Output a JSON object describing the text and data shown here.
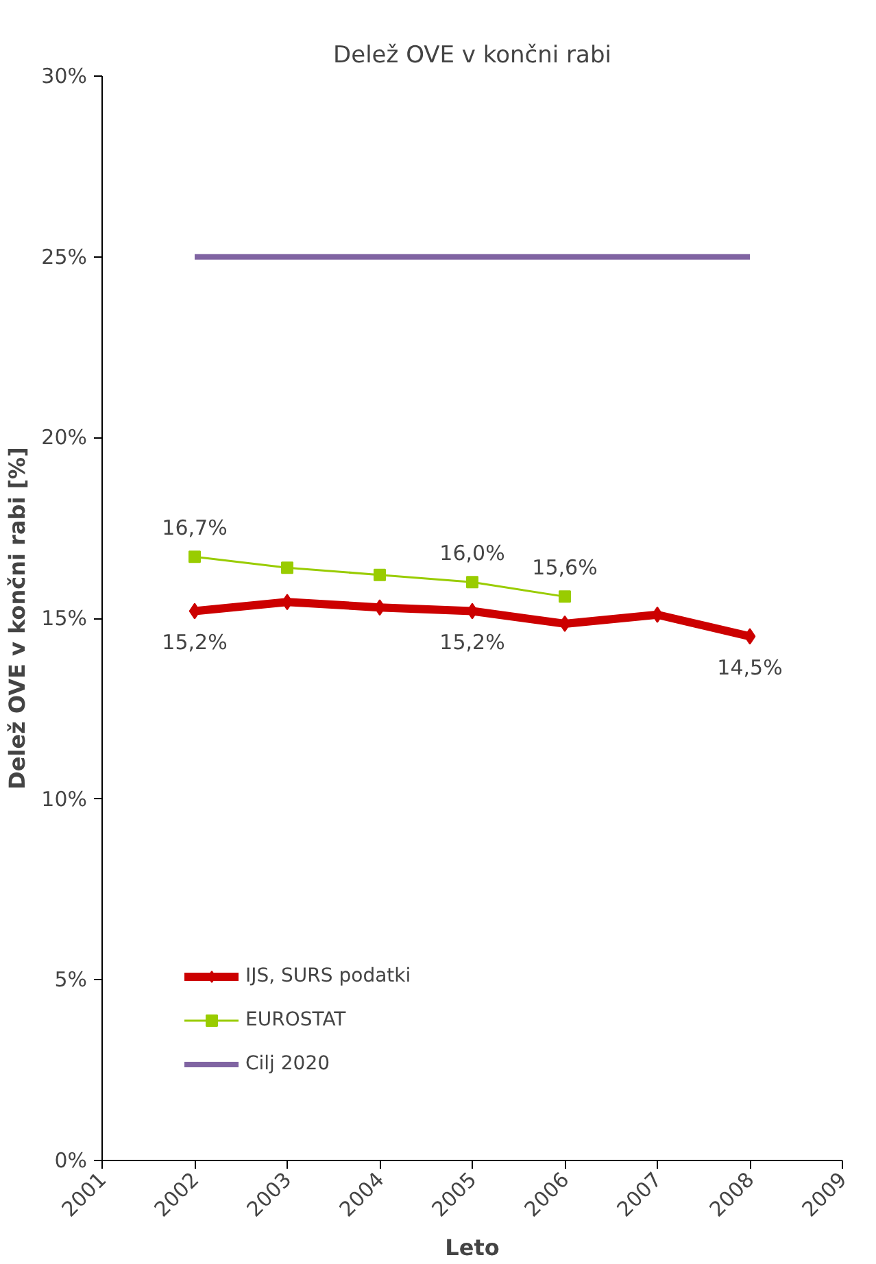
{
  "chart_data": {
    "type": "line",
    "title": "Delež OVE v končni rabi",
    "xlabel": "Leto",
    "ylabel": "Delež OVE v končni rabi [%]",
    "x": [
      2002,
      2003,
      2004,
      2005,
      2006,
      2007,
      2008
    ],
    "xlim": [
      2001,
      2009
    ],
    "xticks": [
      2001,
      2002,
      2003,
      2004,
      2005,
      2006,
      2007,
      2008,
      2009
    ],
    "ylim": [
      0,
      30
    ],
    "yticks": [
      {
        "value": 0,
        "label": "0%"
      },
      {
        "value": 5,
        "label": "5%"
      },
      {
        "value": 10,
        "label": "10%"
      },
      {
        "value": 15,
        "label": "15%"
      },
      {
        "value": 20,
        "label": "20%"
      },
      {
        "value": 25,
        "label": "25%"
      },
      {
        "value": 30,
        "label": "30%"
      }
    ],
    "series": [
      {
        "name": "IJS, SURS podatki",
        "color": "#cc0000",
        "marker": "diamond",
        "values": [
          15.2,
          15.45,
          15.3,
          15.2,
          14.85,
          15.1,
          14.5
        ],
        "value_labels": [
          "15,2%",
          null,
          null,
          "15,2%",
          null,
          null,
          "14,5%"
        ]
      },
      {
        "name": "EUROSTAT",
        "color": "#99cc00",
        "marker": "square",
        "values": [
          16.7,
          16.4,
          16.2,
          16.0,
          15.6,
          null,
          null
        ],
        "value_labels": [
          "16,7%",
          null,
          null,
          "16,0%",
          "15,6%",
          null,
          null
        ]
      },
      {
        "name": "Cilj 2020",
        "color": "#8064a2",
        "marker": "none",
        "values": [
          25,
          25,
          25,
          25,
          25,
          25,
          25
        ]
      }
    ],
    "grid": false,
    "legend": "bottom left"
  }
}
